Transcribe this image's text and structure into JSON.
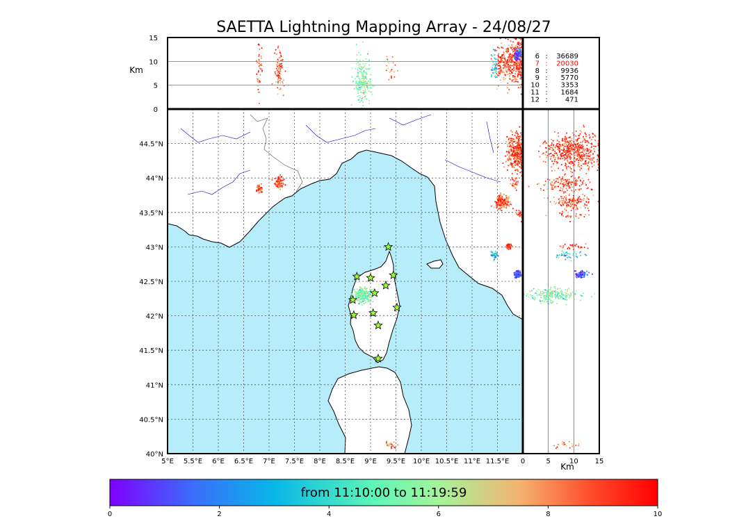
{
  "chart_data": {
    "type": "scatter",
    "title": "SAETTA Lightning Mapping Array - 24/08/27",
    "longitude_ticks": [
      "5°E",
      "5.5°E",
      "6°E",
      "6.5°E",
      "7°E",
      "7.5°E",
      "8°E",
      "8.5°E",
      "9°E",
      "9.5°E",
      "10°E",
      "10.5°E",
      "11°E",
      "11.5°E"
    ],
    "latitude_ticks": [
      "40°N",
      "40.5°N",
      "41°N",
      "41.5°N",
      "42°N",
      "42.5°N",
      "43°N",
      "43.5°N",
      "44°N",
      "44.5°N"
    ],
    "lon_range": [
      5,
      12
    ],
    "lat_range": [
      40,
      45
    ],
    "altitude_axis": {
      "label": "Km",
      "ticks": [
        "0",
        "5",
        "10",
        "15"
      ],
      "range": [
        0,
        15
      ]
    },
    "colorbar": {
      "label": "from 11:10:00 to 11:19:59",
      "ticks": [
        "0",
        "2",
        "4",
        "6",
        "8",
        "10"
      ],
      "range": [
        0,
        10
      ],
      "colors": [
        "#7f00ff",
        "#3c6cfc",
        "#07b7e8",
        "#5cf6b8",
        "#a4f59a",
        "#f5b26f",
        "#ff4b2a",
        "#ff0000"
      ]
    },
    "counts": [
      {
        "label": "6",
        "value": "36689",
        "color": "#000000"
      },
      {
        "label": "7",
        "value": "20030",
        "color": "#ff0000"
      },
      {
        "label": "8",
        "value": "9936",
        "color": "#000000"
      },
      {
        "label": "9",
        "value": "5770",
        "color": "#000000"
      },
      {
        "label": "10",
        "value": "3353",
        "color": "#000000"
      },
      {
        "label": "11",
        "value": "1684",
        "color": "#000000"
      },
      {
        "label": "12",
        "value": "471",
        "color": "#000000"
      }
    ],
    "stations": [
      {
        "lon": 9.35,
        "lat": 43.0
      },
      {
        "lon": 8.73,
        "lat": 42.57
      },
      {
        "lon": 9.0,
        "lat": 42.55
      },
      {
        "lon": 9.45,
        "lat": 42.59
      },
      {
        "lon": 9.3,
        "lat": 42.44
      },
      {
        "lon": 9.08,
        "lat": 42.33
      },
      {
        "lon": 8.65,
        "lat": 42.23
      },
      {
        "lon": 9.52,
        "lat": 42.12
      },
      {
        "lon": 9.05,
        "lat": 42.04
      },
      {
        "lon": 8.67,
        "lat": 42.01
      },
      {
        "lon": 9.15,
        "lat": 41.86
      },
      {
        "lon": 9.15,
        "lat": 41.38
      }
    ],
    "clusters": [
      {
        "lon": 11.93,
        "lat": 44.36,
        "dlon": 0.12,
        "dlat": 0.13,
        "alt": 10,
        "dalt": 2.5,
        "t": 8.7,
        "n": 420
      },
      {
        "lon": 12.1,
        "lat": 44.45,
        "dlon": 0.08,
        "dlat": 0.1,
        "alt": 9,
        "dalt": 3,
        "t": 8.9,
        "n": 150
      },
      {
        "lon": 11.85,
        "lat": 43.92,
        "dlon": 0.04,
        "dlat": 0.04,
        "alt": 9,
        "dalt": 1.5,
        "t": 8.3,
        "n": 25
      },
      {
        "lon": 11.6,
        "lat": 43.66,
        "dlon": 0.08,
        "dlat": 0.05,
        "alt": 9.5,
        "dalt": 2,
        "t": 8.6,
        "n": 140
      },
      {
        "lon": 11.95,
        "lat": 43.46,
        "dlon": 0.04,
        "dlat": 0.03,
        "alt": 9,
        "dalt": 1.5,
        "t": 8.4,
        "n": 30
      },
      {
        "lon": 11.72,
        "lat": 43.01,
        "dlon": 0.03,
        "dlat": 0.02,
        "alt": 9.5,
        "dalt": 1.5,
        "t": 9.0,
        "n": 30
      },
      {
        "lon": 11.45,
        "lat": 42.88,
        "dlon": 0.04,
        "dlat": 0.03,
        "alt": 9,
        "dalt": 1.5,
        "t": 3.0,
        "n": 40
      },
      {
        "lon": 11.9,
        "lat": 42.6,
        "dlon": 0.03,
        "dlat": 0.02,
        "alt": 11.5,
        "dalt": 0.6,
        "t": 1.0,
        "n": 80
      },
      {
        "lon": 7.2,
        "lat": 43.93,
        "dlon": 0.05,
        "dlat": 0.04,
        "alt": 8,
        "dalt": 2.5,
        "t": 8.5,
        "n": 90
      },
      {
        "lon": 6.8,
        "lat": 43.84,
        "dlon": 0.03,
        "dlat": 0.03,
        "alt": 8.5,
        "dalt": 2.5,
        "t": 8.8,
        "n": 40
      },
      {
        "lon": 8.85,
        "lat": 42.3,
        "dlon": 0.09,
        "dlat": 0.05,
        "alt": 6,
        "dalt": 2.5,
        "t": 5.2,
        "n": 220
      },
      {
        "lon": 9.4,
        "lat": 40.12,
        "dlon": 0.05,
        "dlat": 0.03,
        "alt": 8.5,
        "dalt": 1.5,
        "t": 8.0,
        "n": 20
      }
    ]
  }
}
